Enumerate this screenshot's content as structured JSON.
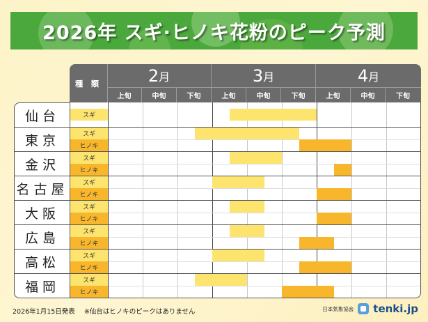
{
  "title": "2026年 スギ·ヒノキ花粉のピーク予測",
  "header": {
    "type_label": "種 類",
    "months": [
      {
        "num": "2",
        "suffix": "月"
      },
      {
        "num": "3",
        "suffix": "月"
      },
      {
        "num": "4",
        "suffix": "月"
      }
    ],
    "dekads": [
      "上旬",
      "中旬",
      "下旬",
      "上旬",
      "中旬",
      "下旬",
      "上旬",
      "中旬",
      "下旬"
    ]
  },
  "colors": {
    "sugi": "#fde46e",
    "hinoki": "#f7b62b",
    "header_bg": "#6b6b6b",
    "banner": "#4aa83c"
  },
  "chart_data": {
    "type": "table",
    "title": "2026年 スギ·ヒノキ花粉のピーク予測",
    "columns": [
      "2月上旬",
      "2月中旬",
      "2月下旬",
      "3月上旬",
      "3月中旬",
      "3月下旬",
      "4月上旬",
      "4月中旬",
      "4月下旬"
    ],
    "unit_note": "start/end in dekad-column units from 2月上旬 start (0) to 4月下旬 end (9); 0.5 = mid-dekad",
    "rows": [
      {
        "city": "仙台",
        "bars": [
          {
            "type": "スギ",
            "start": 3.5,
            "end": 6.0
          }
        ]
      },
      {
        "city": "東京",
        "bars": [
          {
            "type": "スギ",
            "start": 2.5,
            "end": 5.5
          },
          {
            "type": "ヒノキ",
            "start": 5.5,
            "end": 7.0
          }
        ]
      },
      {
        "city": "金沢",
        "bars": [
          {
            "type": "スギ",
            "start": 3.5,
            "end": 5.0
          },
          {
            "type": "ヒノキ",
            "start": 6.5,
            "end": 7.0
          }
        ]
      },
      {
        "city": "名古屋",
        "bars": [
          {
            "type": "スギ",
            "start": 3.0,
            "end": 4.5
          },
          {
            "type": "ヒノキ",
            "start": 6.0,
            "end": 7.0
          }
        ]
      },
      {
        "city": "大阪",
        "bars": [
          {
            "type": "スギ",
            "start": 3.5,
            "end": 4.5
          },
          {
            "type": "ヒノキ",
            "start": 6.0,
            "end": 7.0
          }
        ]
      },
      {
        "city": "広島",
        "bars": [
          {
            "type": "スギ",
            "start": 3.5,
            "end": 4.5
          },
          {
            "type": "ヒノキ",
            "start": 5.5,
            "end": 6.5
          }
        ]
      },
      {
        "city": "高松",
        "bars": [
          {
            "type": "スギ",
            "start": 3.0,
            "end": 4.5
          },
          {
            "type": "ヒノキ",
            "start": 5.5,
            "end": 7.0
          }
        ]
      },
      {
        "city": "福岡",
        "bars": [
          {
            "type": "スギ",
            "start": 2.5,
            "end": 4.0
          },
          {
            "type": "ヒノキ",
            "start": 5.0,
            "end": 6.5
          }
        ]
      }
    ]
  },
  "footer": {
    "date": "2026年1月15日発表",
    "note": "※仙台はヒノキのピークはありません",
    "org": "日本気象協会",
    "brand": "tenki.jp"
  }
}
